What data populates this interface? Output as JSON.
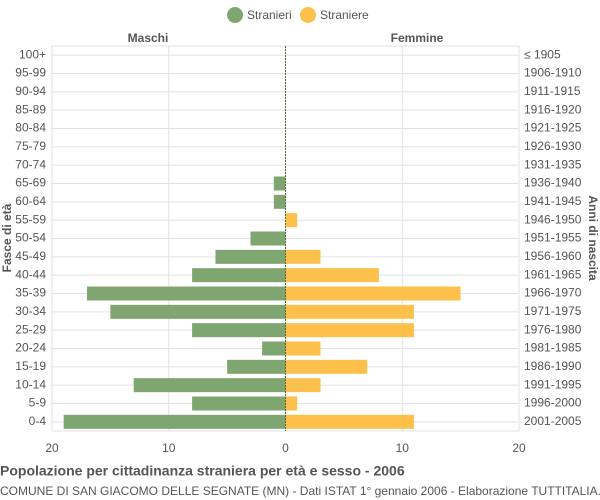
{
  "chart_data": {
    "type": "pyramid",
    "title": "Popolazione per cittadinanza straniera per età e sesso - 2006",
    "subtitle": "COMUNE DI SAN GIACOMO DELLE SEGNATE (MN) - Dati ISTAT 1° gennaio 2006 - Elaborazione TUTTITALIA.IT",
    "left_label": "Maschi",
    "right_label": "Femmine",
    "y_label": "Fasce di età",
    "y2_label": "Anni di nascita",
    "categories": [
      "100+",
      "95-99",
      "90-94",
      "85-89",
      "80-84",
      "75-79",
      "70-74",
      "65-69",
      "60-64",
      "55-59",
      "50-54",
      "45-49",
      "40-44",
      "35-39",
      "30-34",
      "25-29",
      "20-24",
      "15-19",
      "10-14",
      "5-9",
      "0-4"
    ],
    "birth_years": [
      "≤ 1905",
      "1906-1910",
      "1911-1915",
      "1916-1920",
      "1921-1925",
      "1926-1930",
      "1931-1935",
      "1936-1940",
      "1941-1945",
      "1946-1950",
      "1951-1955",
      "1956-1960",
      "1961-1965",
      "1966-1970",
      "1971-1975",
      "1976-1980",
      "1981-1985",
      "1986-1990",
      "1991-1995",
      "1996-2000",
      "2001-2005"
    ],
    "series": [
      {
        "name": "Stranieri",
        "color": "#7fa571",
        "side": "left",
        "values": [
          0,
          0,
          0,
          0,
          0,
          0,
          0,
          1,
          1,
          0,
          3,
          6,
          8,
          17,
          15,
          8,
          2,
          5,
          13,
          8,
          19
        ]
      },
      {
        "name": "Straniere",
        "color": "#fcc04b",
        "side": "right",
        "values": [
          0,
          0,
          0,
          0,
          0,
          0,
          0,
          0,
          0,
          1,
          0,
          3,
          8,
          15,
          11,
          11,
          3,
          7,
          3,
          1,
          11
        ]
      }
    ],
    "xlim": [
      -20,
      20
    ],
    "xticks": [
      {
        "value": -20,
        "label": "20"
      },
      {
        "value": -10,
        "label": "10"
      },
      0,
      10,
      20
    ],
    "grid": true
  }
}
